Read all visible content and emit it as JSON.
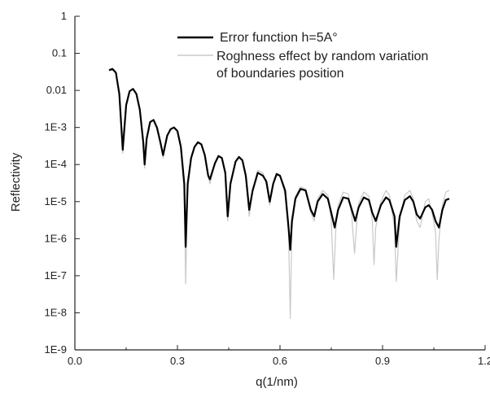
{
  "chart_data": {
    "type": "line",
    "xlabel": "q(1/nm)",
    "ylabel": "Reflectivity",
    "x_scale": "linear",
    "y_scale": "log",
    "xlim": [
      0.0,
      1.2
    ],
    "ylim": [
      1e-09,
      1
    ],
    "x_ticks": [
      {
        "value": 0.0,
        "label": "0.0"
      },
      {
        "value": 0.3,
        "label": "0.3"
      },
      {
        "value": 0.6,
        "label": "0.6"
      },
      {
        "value": 0.9,
        "label": "0.9"
      },
      {
        "value": 1.2,
        "label": "1.2"
      }
    ],
    "y_ticks": [
      {
        "value": 1,
        "label": "1"
      },
      {
        "value": 0.1,
        "label": "0.1"
      },
      {
        "value": 0.01,
        "label": "0.01"
      },
      {
        "value": 0.001,
        "label": "1E-3"
      },
      {
        "value": 0.0001,
        "label": "1E-4"
      },
      {
        "value": 1e-05,
        "label": "1E-5"
      },
      {
        "value": 1e-06,
        "label": "1E-6"
      },
      {
        "value": 1e-07,
        "label": "1E-7"
      },
      {
        "value": 1e-08,
        "label": "1E-8"
      },
      {
        "value": 1e-09,
        "label": "1E-9"
      }
    ],
    "grid": false,
    "legend_position": "top-right",
    "series": [
      {
        "name": "Error function h=5A°",
        "color": "#000000",
        "points": [
          [
            0.1,
            0.035
          ],
          [
            0.11,
            0.038
          ],
          [
            0.12,
            0.03
          ],
          [
            0.13,
            0.008
          ],
          [
            0.14,
            0.00025
          ],
          [
            0.15,
            0.004
          ],
          [
            0.16,
            0.0095
          ],
          [
            0.17,
            0.011
          ],
          [
            0.18,
            0.008
          ],
          [
            0.19,
            0.003
          ],
          [
            0.2,
            0.0004
          ],
          [
            0.204,
            0.0001
          ],
          [
            0.21,
            0.0005
          ],
          [
            0.22,
            0.0014
          ],
          [
            0.23,
            0.0016
          ],
          [
            0.24,
            0.001
          ],
          [
            0.25,
            0.0004
          ],
          [
            0.258,
            0.00018
          ],
          [
            0.27,
            0.0006
          ],
          [
            0.28,
            0.0009
          ],
          [
            0.29,
            0.001
          ],
          [
            0.3,
            0.0008
          ],
          [
            0.31,
            0.0003
          ],
          [
            0.32,
            3e-05
          ],
          [
            0.324,
            6e-07
          ],
          [
            0.33,
            3e-05
          ],
          [
            0.34,
            0.00015
          ],
          [
            0.35,
            0.0003
          ],
          [
            0.36,
            0.0004
          ],
          [
            0.37,
            0.00035
          ],
          [
            0.38,
            0.00018
          ],
          [
            0.39,
            5e-05
          ],
          [
            0.395,
            4e-05
          ],
          [
            0.41,
            0.00011
          ],
          [
            0.42,
            0.00017
          ],
          [
            0.43,
            0.00015
          ],
          [
            0.44,
            6e-05
          ],
          [
            0.447,
            4e-06
          ],
          [
            0.455,
            3e-05
          ],
          [
            0.47,
            0.00012
          ],
          [
            0.48,
            0.00016
          ],
          [
            0.49,
            0.00013
          ],
          [
            0.5,
            5e-05
          ],
          [
            0.51,
            6e-06
          ],
          [
            0.52,
            2e-05
          ],
          [
            0.535,
            6e-05
          ],
          [
            0.55,
            5e-05
          ],
          [
            0.56,
            3.5e-05
          ],
          [
            0.57,
            1e-05
          ],
          [
            0.58,
            3e-05
          ],
          [
            0.59,
            5.5e-05
          ],
          [
            0.6,
            5e-05
          ],
          [
            0.615,
            2e-05
          ],
          [
            0.625,
            2e-06
          ],
          [
            0.63,
            5e-07
          ],
          [
            0.635,
            3e-06
          ],
          [
            0.645,
            1.2e-05
          ],
          [
            0.66,
            2.2e-05
          ],
          [
            0.675,
            2e-05
          ],
          [
            0.69,
            6e-06
          ],
          [
            0.7,
            4e-06
          ],
          [
            0.71,
            1e-05
          ],
          [
            0.725,
            1.6e-05
          ],
          [
            0.74,
            1.2e-05
          ],
          [
            0.75,
            5e-06
          ],
          [
            0.76,
            2e-06
          ],
          [
            0.77,
            6e-06
          ],
          [
            0.785,
            1.3e-05
          ],
          [
            0.8,
            1.2e-05
          ],
          [
            0.81,
            6e-06
          ],
          [
            0.82,
            3e-06
          ],
          [
            0.83,
            7e-06
          ],
          [
            0.845,
            1.3e-05
          ],
          [
            0.86,
            1.1e-05
          ],
          [
            0.87,
            5e-06
          ],
          [
            0.88,
            3e-06
          ],
          [
            0.895,
            8e-06
          ],
          [
            0.91,
            1.3e-05
          ],
          [
            0.92,
            1.1e-05
          ],
          [
            0.935,
            4e-06
          ],
          [
            0.94,
            6e-07
          ],
          [
            0.95,
            4e-06
          ],
          [
            0.965,
            1.1e-05
          ],
          [
            0.98,
            1.4e-05
          ],
          [
            0.99,
            1e-05
          ],
          [
            1.0,
            4.5e-06
          ],
          [
            1.01,
            3.5e-06
          ],
          [
            1.025,
            7e-06
          ],
          [
            1.035,
            8e-06
          ],
          [
            1.045,
            6e-06
          ],
          [
            1.055,
            3e-06
          ],
          [
            1.065,
            2e-06
          ],
          [
            1.075,
            6e-06
          ],
          [
            1.085,
            1.1e-05
          ],
          [
            1.095,
            1.2e-05
          ]
        ]
      },
      {
        "name": "Roghness effect by random variation of boundaries position",
        "color": "#c8c8c8",
        "points": [
          [
            0.1,
            0.035
          ],
          [
            0.11,
            0.038
          ],
          [
            0.12,
            0.03
          ],
          [
            0.13,
            0.008
          ],
          [
            0.14,
            0.0002
          ],
          [
            0.15,
            0.004
          ],
          [
            0.16,
            0.0095
          ],
          [
            0.17,
            0.011
          ],
          [
            0.18,
            0.008
          ],
          [
            0.19,
            0.003
          ],
          [
            0.2,
            0.0004
          ],
          [
            0.204,
            8e-05
          ],
          [
            0.21,
            0.0005
          ],
          [
            0.22,
            0.0014
          ],
          [
            0.23,
            0.0016
          ],
          [
            0.24,
            0.001
          ],
          [
            0.25,
            0.0004
          ],
          [
            0.258,
            0.00015
          ],
          [
            0.27,
            0.0006
          ],
          [
            0.28,
            0.0009
          ],
          [
            0.29,
            0.001
          ],
          [
            0.3,
            0.0008
          ],
          [
            0.31,
            0.0003
          ],
          [
            0.32,
            2e-05
          ],
          [
            0.324,
            6e-08
          ],
          [
            0.33,
            3e-05
          ],
          [
            0.34,
            0.00015
          ],
          [
            0.35,
            0.0003
          ],
          [
            0.36,
            0.0004
          ],
          [
            0.37,
            0.00035
          ],
          [
            0.38,
            0.00018
          ],
          [
            0.39,
            5e-05
          ],
          [
            0.395,
            3e-05
          ],
          [
            0.41,
            0.00011
          ],
          [
            0.42,
            0.00017
          ],
          [
            0.43,
            0.00015
          ],
          [
            0.44,
            5e-05
          ],
          [
            0.447,
            3e-06
          ],
          [
            0.455,
            3e-05
          ],
          [
            0.47,
            0.00012
          ],
          [
            0.48,
            0.00016
          ],
          [
            0.49,
            0.00013
          ],
          [
            0.5,
            4e-05
          ],
          [
            0.51,
            4e-06
          ],
          [
            0.52,
            2e-05
          ],
          [
            0.535,
            7e-05
          ],
          [
            0.55,
            6e-05
          ],
          [
            0.56,
            3e-05
          ],
          [
            0.57,
            8e-06
          ],
          [
            0.58,
            3e-05
          ],
          [
            0.59,
            6e-05
          ],
          [
            0.6,
            5e-05
          ],
          [
            0.615,
            1.5e-05
          ],
          [
            0.625,
            1.5e-06
          ],
          [
            0.63,
            7e-09
          ],
          [
            0.635,
            2e-06
          ],
          [
            0.645,
            1.4e-05
          ],
          [
            0.66,
            2.5e-05
          ],
          [
            0.675,
            2.2e-05
          ],
          [
            0.69,
            5e-06
          ],
          [
            0.7,
            3e-06
          ],
          [
            0.71,
            1.2e-05
          ],
          [
            0.725,
            2e-05
          ],
          [
            0.74,
            1.5e-05
          ],
          [
            0.75,
            3e-06
          ],
          [
            0.757,
            8e-08
          ],
          [
            0.765,
            4e-06
          ],
          [
            0.77,
            8e-06
          ],
          [
            0.785,
            1.8e-05
          ],
          [
            0.8,
            1.6e-05
          ],
          [
            0.81,
            4e-06
          ],
          [
            0.818,
            4e-07
          ],
          [
            0.825,
            3e-06
          ],
          [
            0.83,
            9e-06
          ],
          [
            0.845,
            1.8e-05
          ],
          [
            0.86,
            1.4e-05
          ],
          [
            0.87,
            3e-06
          ],
          [
            0.875,
            2e-07
          ],
          [
            0.88,
            2e-06
          ],
          [
            0.895,
            1e-05
          ],
          [
            0.91,
            2e-05
          ],
          [
            0.92,
            1.5e-05
          ],
          [
            0.935,
            2e-06
          ],
          [
            0.94,
            7e-08
          ],
          [
            0.95,
            3e-06
          ],
          [
            0.965,
            1.5e-05
          ],
          [
            0.98,
            2e-05
          ],
          [
            0.99,
            1.2e-05
          ],
          [
            1.0,
            3e-06
          ],
          [
            1.01,
            2e-06
          ],
          [
            1.025,
            1e-05
          ],
          [
            1.035,
            1.2e-05
          ],
          [
            1.045,
            5e-06
          ],
          [
            1.055,
            1.5e-06
          ],
          [
            1.06,
            8e-08
          ],
          [
            1.065,
            1e-06
          ],
          [
            1.075,
            8e-06
          ],
          [
            1.085,
            1.8e-05
          ],
          [
            1.095,
            2e-05
          ]
        ]
      }
    ]
  }
}
